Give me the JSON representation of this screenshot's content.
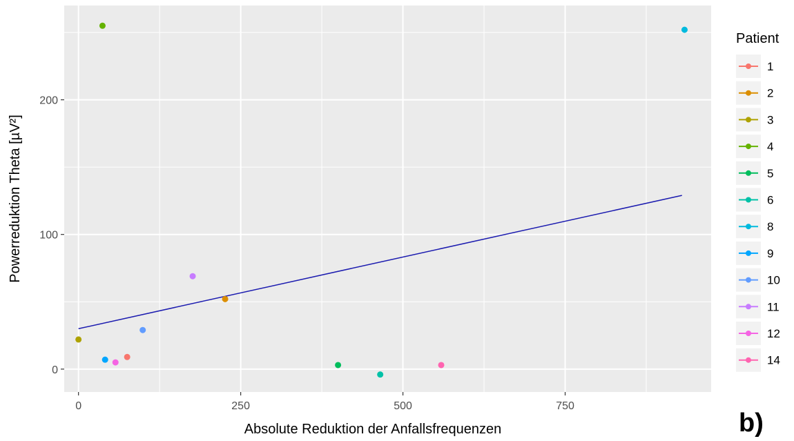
{
  "chart_data": {
    "type": "scatter",
    "title": "",
    "xlabel": "Absolute Reduktion der Anfallsfrequenzen",
    "ylabel": "Powerreduktion Theta [µV²]",
    "xlim": [
      -22,
      975
    ],
    "ylim": [
      -17,
      270
    ],
    "xticks": [
      0,
      250,
      500,
      750
    ],
    "xtick_labels": [
      "0",
      "250",
      "500",
      "750"
    ],
    "yticks": [
      0,
      100,
      200
    ],
    "ytick_labels": [
      "0",
      "100",
      "200"
    ],
    "grid": true,
    "legend_title": "Patient",
    "legend_position": "right",
    "series": [
      {
        "name": "1",
        "color": "#F8766D",
        "x": 75,
        "y": 9
      },
      {
        "name": "2",
        "color": "#DB8E00",
        "x": 226,
        "y": 52
      },
      {
        "name": "3",
        "color": "#AEA200",
        "x": 0,
        "y": 22
      },
      {
        "name": "4",
        "color": "#64B200",
        "x": 37,
        "y": 255
      },
      {
        "name": "5",
        "color": "#00BD5C",
        "x": 400,
        "y": 3
      },
      {
        "name": "6",
        "color": "#00C1A7",
        "x": 465,
        "y": -4
      },
      {
        "name": "8",
        "color": "#00BADE",
        "x": 934,
        "y": 252
      },
      {
        "name": "9",
        "color": "#00A6FF",
        "x": 41,
        "y": 7
      },
      {
        "name": "10",
        "color": "#619CFF",
        "x": 99,
        "y": 29
      },
      {
        "name": "11",
        "color": "#C77CFF",
        "x": 176,
        "y": 69
      },
      {
        "name": "12",
        "color": "#F564E3",
        "x": 57,
        "y": 5
      },
      {
        "name": "14",
        "color": "#FF64B0",
        "x": 559,
        "y": 3
      }
    ],
    "regression_line": {
      "color": "#1a1aaf",
      "x": [
        0,
        930
      ],
      "y": [
        30,
        129
      ]
    }
  },
  "panel_label": "b)"
}
